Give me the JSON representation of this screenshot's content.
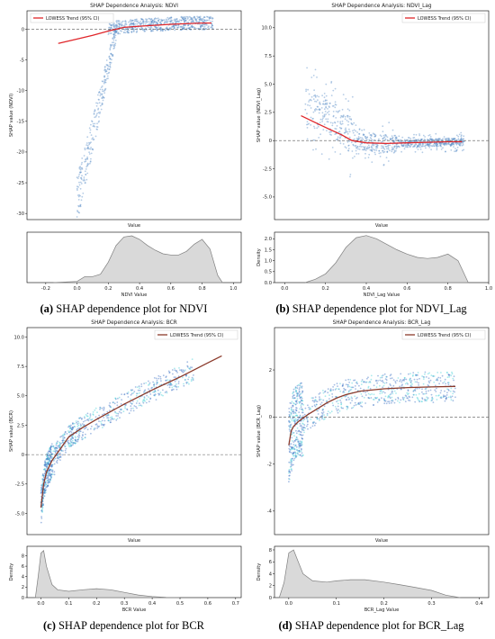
{
  "colors": {
    "scatter_ab": "#5b8fc7",
    "scatter_cd": "#3a6fc4",
    "scatter_cd_alt": "#40d0d8",
    "trend_ab": "#e0262a",
    "trend_cd": "#8b3a2b",
    "density_fill": "#d9d9d9",
    "density_line": "#7f7f7f",
    "zero_line": "#555555"
  },
  "captions": [
    {
      "tag": "(a)",
      "text": "SHAP dependence plot for NDVI"
    },
    {
      "tag": "(b)",
      "text": "SHAP dependence plot for NDVI_Lag"
    },
    {
      "tag": "(c)",
      "text": "SHAP dependence plot for BCR"
    },
    {
      "tag": "(d)",
      "text": "SHAP dependence plot for BCR_Lag"
    }
  ],
  "chart_data": [
    {
      "type": "scatter",
      "title": "SHAP Dependence Analysis: NDVI",
      "xlabel": "Value",
      "ylabel": "SHAP value (NDVI)",
      "legend": {
        "label": "LOWESS Trend (95% CI)",
        "placement": "top-left"
      },
      "ylim": [
        -31,
        3
      ],
      "yticks": [
        0,
        -5,
        -10,
        -15,
        -20,
        -25,
        -30
      ],
      "zero_line": 0,
      "trend": {
        "x": [
          -0.12,
          0.0,
          0.1,
          0.2,
          0.3,
          0.4,
          0.6,
          0.8,
          0.86
        ],
        "y": [
          -2.3,
          -1.6,
          -1.0,
          -0.3,
          0.3,
          0.5,
          0.8,
          1.0,
          1.0
        ]
      },
      "density": {
        "xlabel": "NDVI Value",
        "ylabel": "",
        "xlim": [
          -0.32,
          1.05
        ],
        "xticks": [
          -0.2,
          0.0,
          0.2,
          0.4,
          0.6,
          0.8,
          1.0
        ],
        "x": [
          -0.15,
          0.0,
          0.05,
          0.1,
          0.15,
          0.2,
          0.25,
          0.3,
          0.35,
          0.4,
          0.45,
          0.5,
          0.55,
          0.6,
          0.65,
          0.7,
          0.75,
          0.8,
          0.85,
          0.9,
          0.93
        ],
        "y": [
          0.0,
          0.05,
          0.25,
          0.25,
          0.35,
          0.85,
          1.55,
          1.9,
          1.95,
          1.8,
          1.55,
          1.35,
          1.2,
          1.15,
          1.15,
          1.3,
          1.6,
          1.8,
          1.4,
          0.3,
          0.0
        ],
        "ylim": [
          0,
          2.1
        ]
      }
    },
    {
      "type": "scatter",
      "title": "SHAP Dependence Analysis: NDVI_Lag",
      "xlabel": "Value",
      "ylabel": "SHAP value (NDVI_Lag)",
      "legend": {
        "label": "LOWESS Trend (95% CI)",
        "placement": "top-right"
      },
      "ylim": [
        -7,
        11.5
      ],
      "yticks": [
        10.0,
        7.5,
        5.0,
        2.5,
        0.0,
        -2.5,
        -5.0
      ],
      "zero_line": 0,
      "trend": {
        "x": [
          0.08,
          0.15,
          0.22,
          0.28,
          0.33,
          0.4,
          0.5,
          0.6,
          0.7,
          0.8,
          0.87
        ],
        "y": [
          2.2,
          1.6,
          1.0,
          0.5,
          0.0,
          -0.2,
          -0.25,
          -0.2,
          -0.15,
          -0.1,
          -0.1
        ]
      },
      "density": {
        "xlabel": "NDVI_Lag Value",
        "ylabel": "Density",
        "xlim": [
          -0.05,
          1.0
        ],
        "xticks": [
          0.0,
          0.2,
          0.4,
          0.6,
          0.8,
          1.0
        ],
        "yticks": [
          0.0,
          0.5,
          1.0,
          1.5,
          2.0
        ],
        "x": [
          0.1,
          0.15,
          0.2,
          0.25,
          0.3,
          0.35,
          0.4,
          0.45,
          0.5,
          0.55,
          0.6,
          0.65,
          0.7,
          0.75,
          0.8,
          0.85,
          0.9
        ],
        "y": [
          0.0,
          0.15,
          0.4,
          0.9,
          1.6,
          2.05,
          2.15,
          2.0,
          1.75,
          1.5,
          1.3,
          1.15,
          1.1,
          1.15,
          1.3,
          1.0,
          0.0
        ],
        "ylim": [
          0,
          2.3
        ]
      }
    },
    {
      "type": "scatter",
      "title": "SHAP Dependence Analysis: BCR",
      "xlabel": "Value",
      "ylabel": "SHAP value (BCR)",
      "legend": {
        "label": "LOWESS Trend (95% CI)",
        "placement": "top-right"
      },
      "ylim": [
        -6.8,
        10.8
      ],
      "yticks": [
        10.0,
        7.5,
        5.0,
        2.5,
        0.0,
        -2.5,
        -5.0
      ],
      "zero_line": 0,
      "trend": {
        "x": [
          0.0,
          0.01,
          0.02,
          0.04,
          0.07,
          0.1,
          0.15,
          0.2,
          0.3,
          0.4,
          0.5,
          0.6,
          0.65
        ],
        "y": [
          -4.5,
          -2.5,
          -1.5,
          -0.5,
          0.5,
          1.5,
          2.3,
          3.0,
          4.3,
          5.5,
          6.6,
          7.8,
          8.4
        ]
      },
      "density": {
        "xlabel": "BCR Value",
        "ylabel": "Density",
        "xlim": [
          -0.05,
          0.72
        ],
        "xticks": [
          0.0,
          0.1,
          0.2,
          0.3,
          0.4,
          0.5,
          0.6,
          0.7
        ],
        "yticks": [
          0,
          2,
          4,
          6,
          8
        ],
        "x": [
          -0.02,
          -0.01,
          0.0,
          0.01,
          0.02,
          0.04,
          0.06,
          0.1,
          0.15,
          0.2,
          0.25,
          0.3,
          0.35,
          0.4,
          0.45,
          0.5
        ],
        "y": [
          0.0,
          4.0,
          8.5,
          9.0,
          6.0,
          2.5,
          1.5,
          1.2,
          1.5,
          1.7,
          1.5,
          1.0,
          0.5,
          0.2,
          0.05,
          0.0
        ],
        "ylim": [
          0,
          9.8
        ]
      }
    },
    {
      "type": "scatter",
      "title": "SHAP Dependence Analysis: BCR_Lag",
      "xlabel": "Value",
      "ylabel": "SHAP value (BCR_Lag)",
      "legend": {
        "label": "LOWESS Trend (95% CI)",
        "placement": "top-right"
      },
      "ylim": [
        -5,
        3.8
      ],
      "yticks": [
        2,
        0,
        -2,
        -4
      ],
      "zero_line": 0,
      "trend": {
        "x": [
          0.0,
          0.005,
          0.01,
          0.02,
          0.04,
          0.06,
          0.08,
          0.1,
          0.12,
          0.15,
          0.2,
          0.25,
          0.3,
          0.35
        ],
        "y": [
          -1.2,
          -0.6,
          -0.4,
          -0.2,
          0.1,
          0.35,
          0.6,
          0.8,
          0.95,
          1.1,
          1.2,
          1.25,
          1.28,
          1.3
        ]
      },
      "density": {
        "xlabel": "BCR_Lag Value",
        "ylabel": "Density",
        "xlim": [
          -0.03,
          0.42
        ],
        "xticks": [
          0.0,
          0.1,
          0.2,
          0.3,
          0.4
        ],
        "yticks": [
          0,
          2,
          4,
          6,
          8
        ],
        "x": [
          -0.02,
          -0.01,
          0.0,
          0.01,
          0.02,
          0.03,
          0.05,
          0.08,
          0.1,
          0.13,
          0.16,
          0.2,
          0.23,
          0.26,
          0.3,
          0.33,
          0.36
        ],
        "y": [
          0.0,
          2.5,
          7.5,
          8.0,
          6.0,
          4.0,
          2.8,
          2.6,
          2.8,
          3.0,
          3.0,
          2.6,
          2.2,
          1.8,
          1.2,
          0.4,
          0.0
        ],
        "ylim": [
          0,
          8.6
        ]
      }
    }
  ]
}
